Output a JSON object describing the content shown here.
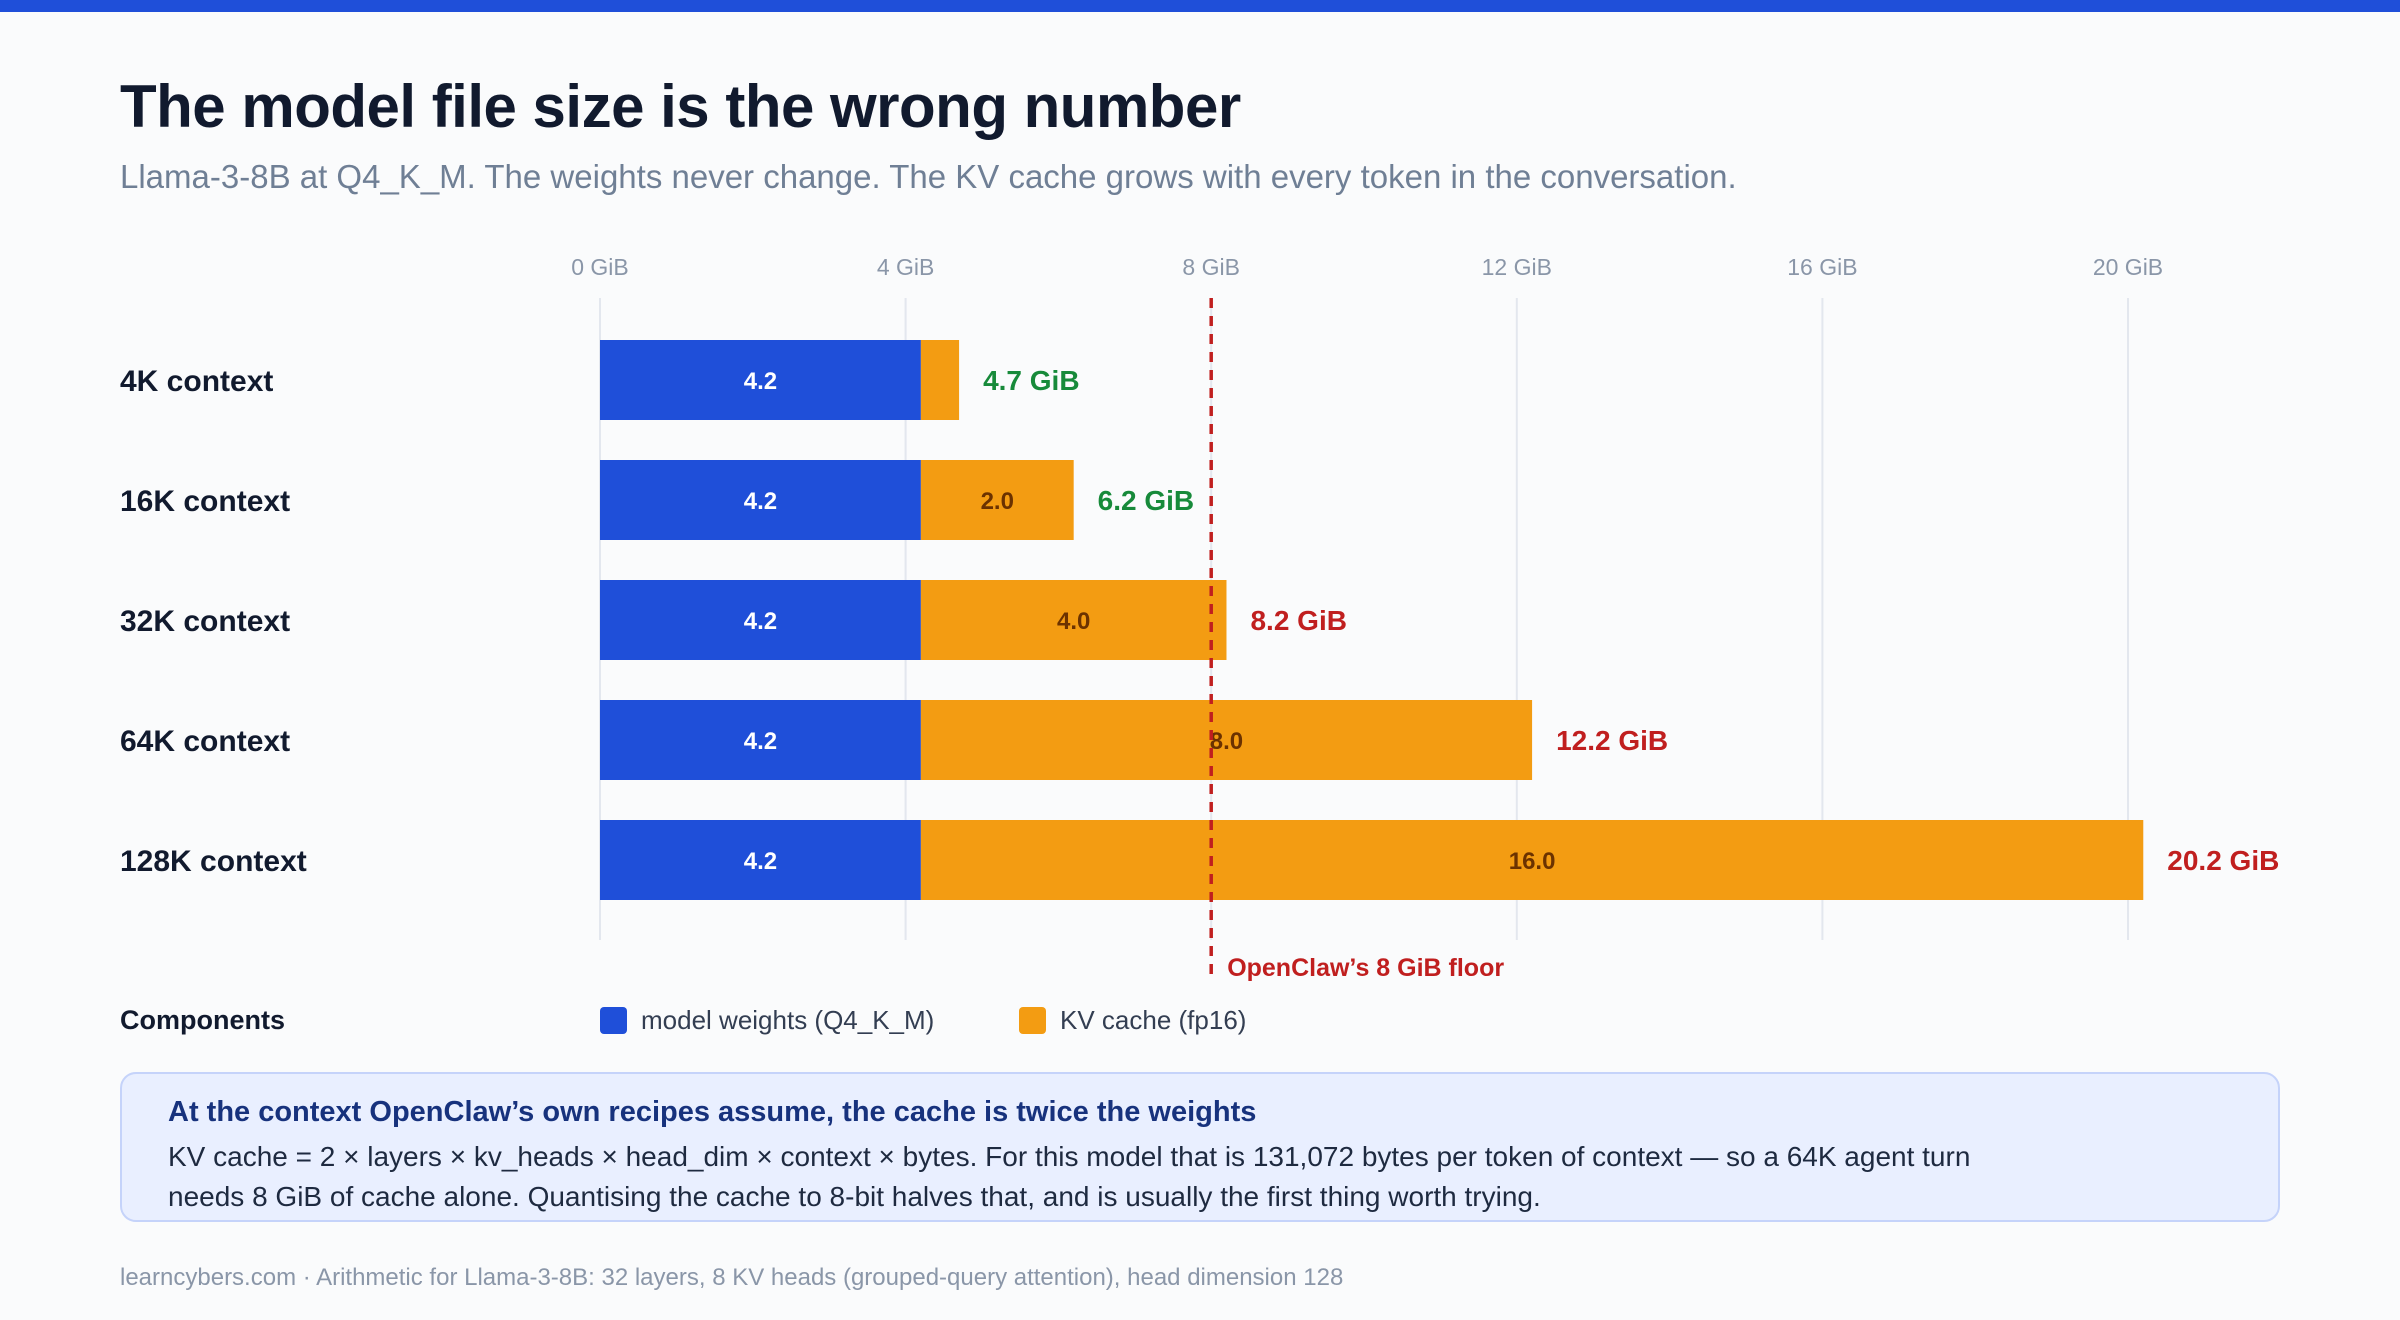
{
  "header": {
    "title": "The model file size is the wrong number",
    "subtitle": "Llama-3-8B at Q4_K_M. The weights never change. The KV cache grows with every token in the conversation."
  },
  "chart_data": {
    "type": "bar",
    "orientation": "horizontal",
    "stacked": true,
    "categories": [
      "4K context",
      "16K context",
      "32K context",
      "64K context",
      "128K context"
    ],
    "series": [
      {
        "name": "model weights (Q4_K_M)",
        "color": "#1f4fd9",
        "values": [
          4.2,
          4.2,
          4.2,
          4.2,
          4.2
        ],
        "labels": [
          "4.2",
          "4.2",
          "4.2",
          "4.2",
          "4.2"
        ]
      },
      {
        "name": "KV cache (fp16)",
        "color": "#f39c12",
        "values": [
          0.5,
          2.0,
          4.0,
          8.0,
          16.0
        ],
        "labels": [
          "",
          "2.0",
          "4.0",
          "8.0",
          "16.0"
        ]
      }
    ],
    "totals": [
      "4.7 GiB",
      "6.2 GiB",
      "8.2 GiB",
      "12.2 GiB",
      "20.2 GiB"
    ],
    "total_colors": [
      "#178a3a",
      "#178a3a",
      "#c01f1f",
      "#c01f1f",
      "#c01f1f"
    ],
    "x_ticks": [
      0,
      4,
      8,
      12,
      16,
      20
    ],
    "x_tick_labels": [
      "0 GiB",
      "4 GiB",
      "8 GiB",
      "12 GiB",
      "16 GiB",
      "20 GiB"
    ],
    "xlim": [
      0,
      20.2
    ],
    "grid": true,
    "threshold": {
      "value": 8,
      "label": "OpenClaw’s 8 GiB floor",
      "color": "#c01f1f"
    }
  },
  "legend": {
    "title": "Components",
    "items": [
      {
        "label": "model weights (Q4_K_M)",
        "color": "#1f4fd9"
      },
      {
        "label": "KV cache (fp16)",
        "color": "#f39c12"
      }
    ]
  },
  "callout": {
    "title": "At the context OpenClaw’s own recipes assume, the cache is twice the weights",
    "body": "KV cache = 2 × layers × kv_heads × head_dim × context × bytes. For this model that is 131,072 bytes per token of context — so a 64K agent turn needs 8 GiB of cache alone. Quantising the cache to 8-bit halves that, and is usually the first thing worth trying."
  },
  "footer": "learncybers.com · Arithmetic for Llama-3-8B: 32 layers, 8 KV heads (grouped-query attention), head dimension 128"
}
